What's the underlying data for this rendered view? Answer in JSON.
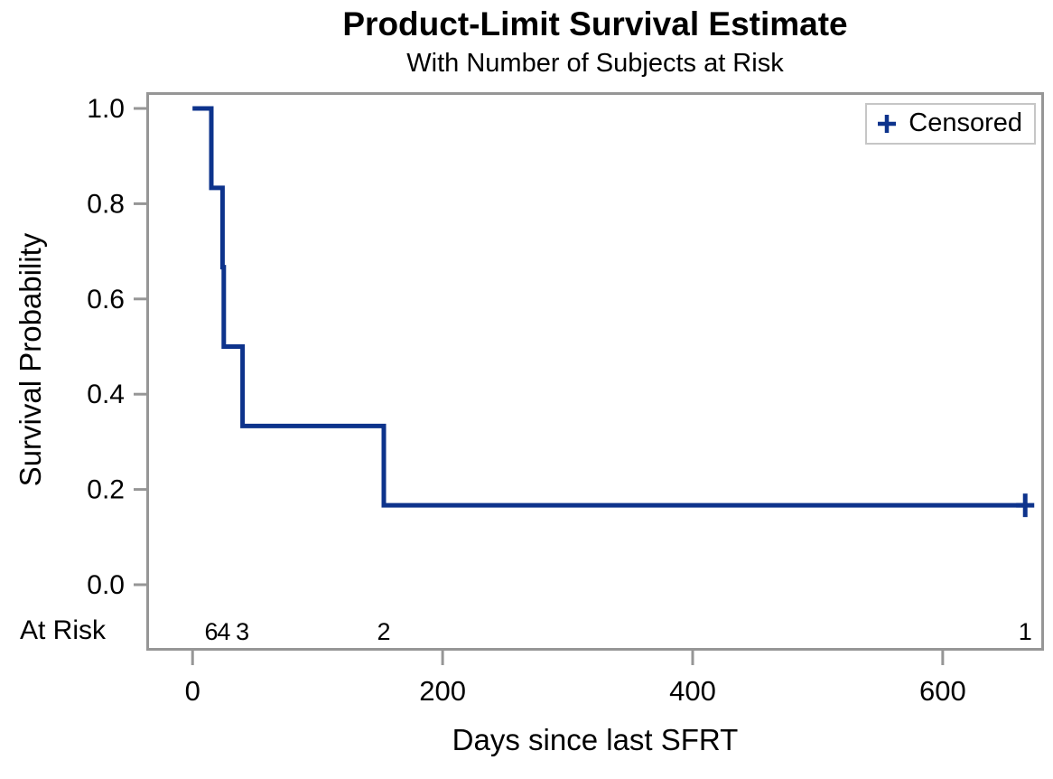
{
  "title": "Product-Limit Survival Estimate",
  "subtitle": "With Number of Subjects at Risk",
  "legend": {
    "marker": "plus",
    "label": "Censored"
  },
  "at_risk_header": "At Risk",
  "colors": {
    "line": "#0d338c",
    "axis": "#969696",
    "text": "#000000",
    "legend_border": "#c6c6c6",
    "background": "#ffffff"
  },
  "chart_data": {
    "type": "line",
    "subtype": "kaplan-meier-step",
    "title": "Product-Limit Survival Estimate",
    "subtitle": "With Number of Subjects at Risk",
    "xlabel": "Days since last SFRT",
    "ylabel": "Survival Probability",
    "xlim": [
      -37,
      681
    ],
    "ylim": [
      0.0,
      1.0
    ],
    "x_ticks": [
      0,
      200,
      400,
      600
    ],
    "y_ticks": [
      1.0,
      0.8,
      0.6,
      0.4,
      0.2,
      0.0
    ],
    "grid": false,
    "legend_position": "inside-top-right",
    "series": [
      {
        "name": "survival",
        "step_points": [
          [
            0,
            1.0
          ],
          [
            15,
            1.0
          ],
          [
            15,
            0.8333
          ],
          [
            24,
            0.8333
          ],
          [
            24,
            0.6667
          ],
          [
            25,
            0.6667
          ],
          [
            25,
            0.5
          ],
          [
            40,
            0.5
          ],
          [
            40,
            0.3333
          ],
          [
            153,
            0.3333
          ],
          [
            153,
            0.1667
          ],
          [
            666,
            0.1667
          ]
        ]
      }
    ],
    "censored_points": [
      [
        666,
        0.1667
      ]
    ],
    "at_risk": {
      "label": "At Risk",
      "times": [
        15,
        25,
        40,
        153,
        666
      ],
      "counts": [
        6,
        4,
        3,
        2,
        1
      ]
    }
  }
}
